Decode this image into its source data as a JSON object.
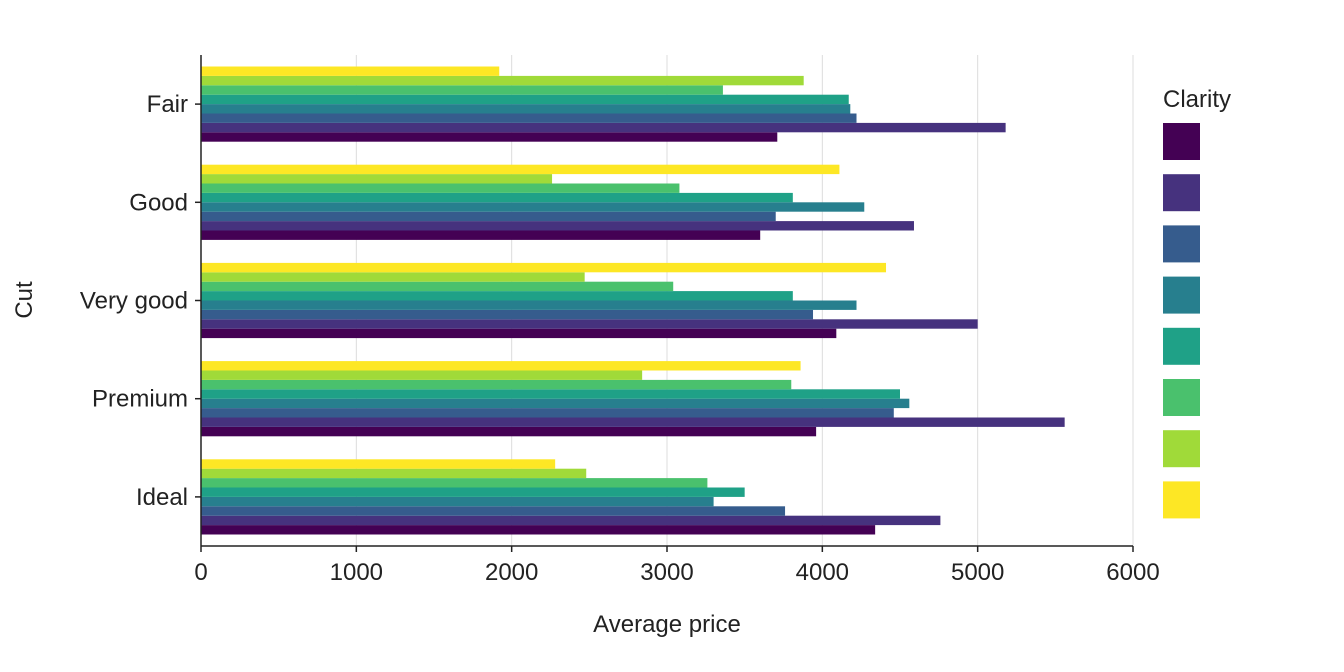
{
  "chart_data": {
    "type": "bar",
    "orientation": "horizontal",
    "categories": [
      "Fair",
      "Good",
      "Very good",
      "Premium",
      "Ideal"
    ],
    "xlabel": "Average price",
    "ylabel": "Cut",
    "xlim": [
      0,
      6000
    ],
    "xticks": [
      0,
      1000,
      2000,
      3000,
      4000,
      5000,
      6000
    ],
    "grid": "vertical",
    "legend": {
      "title": "Clarity",
      "placement": "right"
    },
    "series": [
      {
        "color": "#440154",
        "values": [
          3710,
          3600,
          4090,
          3960,
          4340
        ]
      },
      {
        "color": "#46327e",
        "values": [
          5180,
          4590,
          5000,
          5560,
          4760
        ]
      },
      {
        "color": "#365c8d",
        "values": [
          4220,
          3700,
          3940,
          4460,
          3760
        ]
      },
      {
        "color": "#277f8e",
        "values": [
          4180,
          4270,
          4220,
          4560,
          3300
        ]
      },
      {
        "color": "#1fa187",
        "values": [
          4170,
          3810,
          3810,
          4500,
          3500
        ]
      },
      {
        "color": "#4ac16d",
        "values": [
          3360,
          3080,
          3040,
          3800,
          3260
        ]
      },
      {
        "color": "#a0da39",
        "values": [
          3880,
          2260,
          2470,
          2840,
          2480
        ]
      },
      {
        "color": "#fde725",
        "values": [
          1920,
          4110,
          4410,
          3860,
          2280
        ]
      }
    ]
  }
}
